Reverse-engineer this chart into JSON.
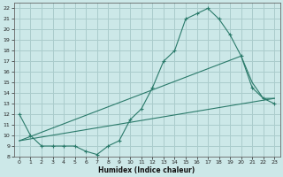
{
  "xlabel": "Humidex (Indice chaleur)",
  "bg_color": "#cce8e8",
  "grid_color": "#aacccc",
  "line_color": "#2a7a6a",
  "xlim": [
    -0.5,
    23.5
  ],
  "ylim": [
    8,
    22.5
  ],
  "xticks": [
    0,
    1,
    2,
    3,
    4,
    5,
    6,
    7,
    8,
    9,
    10,
    11,
    12,
    13,
    14,
    15,
    16,
    17,
    18,
    19,
    20,
    21,
    22,
    23
  ],
  "yticks": [
    8,
    9,
    10,
    11,
    12,
    13,
    14,
    15,
    16,
    17,
    18,
    19,
    20,
    21,
    22
  ],
  "line1_x": [
    0,
    1,
    2,
    3,
    4,
    5,
    6,
    7,
    8,
    9,
    10,
    11,
    12,
    13,
    14,
    15,
    16,
    17,
    18,
    19,
    20,
    21,
    22,
    23
  ],
  "line1_y": [
    12,
    10,
    9,
    9,
    9,
    9,
    8.5,
    8.2,
    9,
    9.5,
    11.5,
    12.5,
    14.5,
    17,
    18,
    21,
    21.5,
    22,
    21,
    19.5,
    17.5,
    14.5,
    13.5,
    13
  ],
  "line2_x": [
    0,
    23
  ],
  "line2_y": [
    9.5,
    13.5
  ],
  "line3_x": [
    0,
    20,
    21,
    22,
    23
  ],
  "line3_y": [
    9.5,
    17.5,
    15,
    13.5,
    13.5
  ]
}
